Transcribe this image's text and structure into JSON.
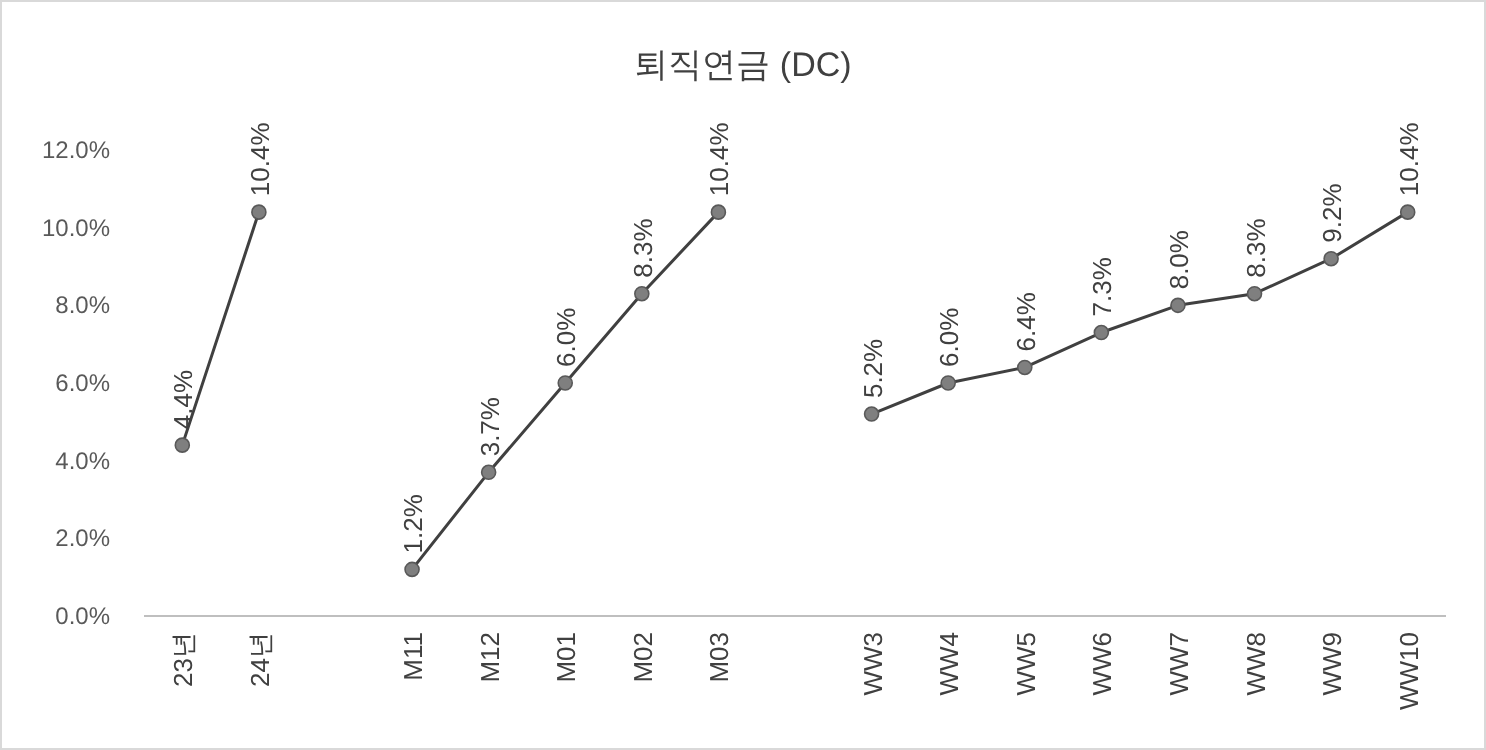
{
  "chart_data": {
    "type": "line",
    "title": "퇴직연금 (DC)",
    "categories": [
      "23년",
      "24년",
      null,
      "M11",
      "M12",
      "M01",
      "M02",
      "M03",
      null,
      "WW3",
      "WW4",
      "WW5",
      "WW6",
      "WW7",
      "WW8",
      "WW9",
      "WW10"
    ],
    "series": [
      {
        "color": "#7f7f7f",
        "values": [
          4.4,
          10.4,
          null,
          1.2,
          3.7,
          6.0,
          8.3,
          10.4,
          null,
          5.2,
          6.0,
          6.4,
          7.3,
          8.0,
          8.3,
          9.2,
          10.4
        ],
        "value_labels": [
          "4.4%",
          "10.4%",
          null,
          "1.2%",
          "3.7%",
          "6.0%",
          "8.3%",
          "10.4%",
          null,
          "5.2%",
          "6.0%",
          "6.4%",
          "7.3%",
          "8.0%",
          "8.3%",
          "9.2%",
          "10.4%"
        ]
      }
    ],
    "ylim": [
      0,
      12
    ],
    "yticks": [
      {
        "value": 0,
        "label": "0.0%"
      },
      {
        "value": 2,
        "label": "2.0%"
      },
      {
        "value": 4,
        "label": "4.0%"
      },
      {
        "value": 6,
        "label": "6.0%"
      },
      {
        "value": 8,
        "label": "8.0%"
      },
      {
        "value": 10,
        "label": "10.0%"
      },
      {
        "value": 12,
        "label": "12.0%"
      }
    ],
    "marker": "circle",
    "line_style": "solid",
    "grid": false
  }
}
